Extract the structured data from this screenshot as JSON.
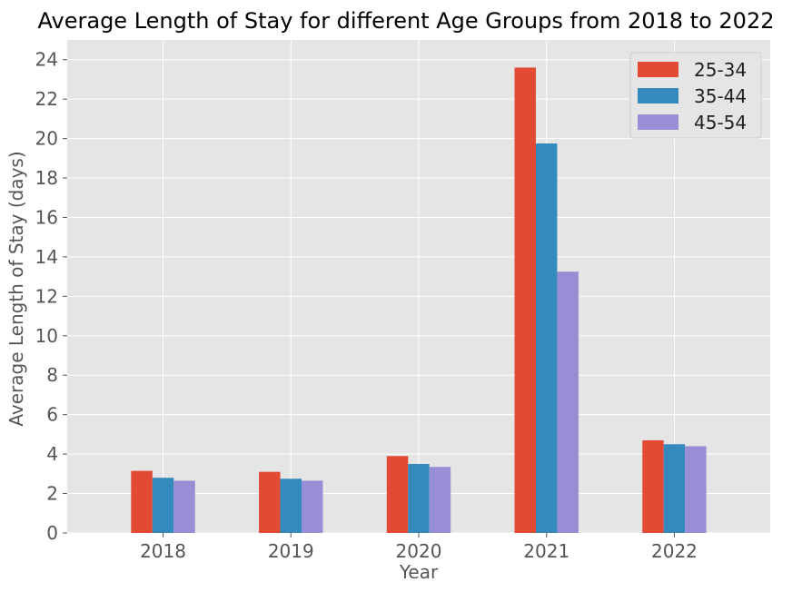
{
  "chart_data": {
    "type": "bar",
    "title": "Average Length of Stay for different Age Groups from 2018 to 2022",
    "xlabel": "Year",
    "ylabel": "Average Length of Stay (days)",
    "categories": [
      "2018",
      "2019",
      "2020",
      "2021",
      "2022"
    ],
    "ylim": [
      0,
      25
    ],
    "yticks": [
      0,
      2,
      4,
      6,
      8,
      10,
      12,
      14,
      16,
      18,
      20,
      22,
      24
    ],
    "grid": true,
    "legend_position": "top-right",
    "series": [
      {
        "name": "25-34",
        "color": "#E24A33",
        "values": [
          3.15,
          3.1,
          3.9,
          23.6,
          4.7
        ]
      },
      {
        "name": "35-44",
        "color": "#348ABD",
        "values": [
          2.8,
          2.75,
          3.5,
          19.75,
          4.5
        ]
      },
      {
        "name": "45-54",
        "color": "#988ED5",
        "values": [
          2.65,
          2.65,
          3.35,
          13.25,
          4.4
        ]
      }
    ]
  }
}
